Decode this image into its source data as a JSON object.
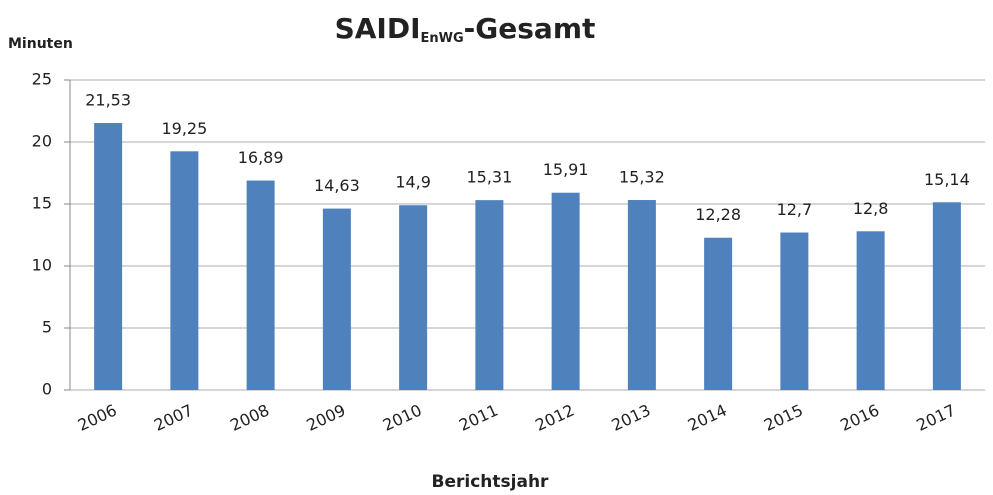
{
  "chart_data": {
    "type": "bar",
    "title": {
      "main": "SAIDI",
      "subscript": "EnWG",
      "suffix": "-Gesamt"
    },
    "y_label": "Minuten",
    "x_label": "Berichtsjahr",
    "categories": [
      "2006",
      "2007",
      "2008",
      "2009",
      "2010",
      "2011",
      "2012",
      "2013",
      "2014",
      "2015",
      "2016",
      "2017"
    ],
    "values": [
      21.53,
      19.25,
      16.89,
      14.63,
      14.9,
      15.31,
      15.91,
      15.32,
      12.28,
      12.7,
      12.8,
      15.14
    ],
    "value_labels": [
      "21,53",
      "19,25",
      "16,89",
      "14,63",
      "14,9",
      "15,31",
      "15,91",
      "15,32",
      "12,28",
      "12,7",
      "12,8",
      "15,14"
    ],
    "color": "#4f81bd",
    "ylim": [
      0,
      25
    ],
    "yticks": [
      0,
      5,
      10,
      15,
      20,
      25
    ],
    "grid": true
  }
}
